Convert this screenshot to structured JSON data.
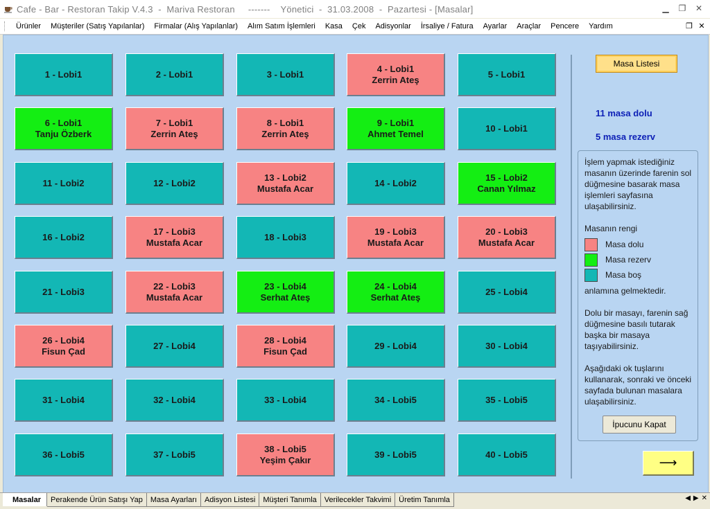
{
  "window": {
    "title": "Cafe - Bar - Restoran Takip V.4.3  -  Mariva Restoran     -------    Yönetici  -  31.03.2008  -  Pazartesi - [Masalar]",
    "icons": {
      "app": "coffee-cup-icon",
      "minimize": "minimize-icon",
      "restore": "restore-icon",
      "close": "close-icon"
    }
  },
  "menu": {
    "items": [
      "Ürünler",
      "Müşteriler (Satış Yapılanlar)",
      "Firmalar (Alış Yapılanlar)",
      "Alım Satım İşlemleri",
      "Kasa",
      "Çek",
      "Adisyonlar",
      "İrsaliye / Fatura",
      "Ayarlar",
      "Araçlar",
      "Pencere",
      "Yardım"
    ]
  },
  "colors": {
    "free": "#13b7b5",
    "full": "#f78383",
    "reserved": "#14ee13",
    "panel": "#b9d5f2",
    "stat_text": "#0c1fb6"
  },
  "tables": [
    {
      "line1": "1 - Lobi1",
      "line2": "",
      "status": "free"
    },
    {
      "line1": "2 - Lobi1",
      "line2": "",
      "status": "free"
    },
    {
      "line1": "3 - Lobi1",
      "line2": "",
      "status": "free"
    },
    {
      "line1": "4 - Lobi1",
      "line2": "Zerrin Ateş",
      "status": "full"
    },
    {
      "line1": "5 - Lobi1",
      "line2": "",
      "status": "free"
    },
    {
      "line1": "6 - Lobi1",
      "line2": "Tanju Özberk",
      "status": "reserved"
    },
    {
      "line1": "7 - Lobi1",
      "line2": "Zerrin Ateş",
      "status": "full"
    },
    {
      "line1": "8 - Lobi1",
      "line2": "Zerrin Ateş",
      "status": "full"
    },
    {
      "line1": "9 - Lobi1",
      "line2": "Ahmet Temel",
      "status": "reserved"
    },
    {
      "line1": "10 - Lobi1",
      "line2": "",
      "status": "free"
    },
    {
      "line1": "11 - Lobi2",
      "line2": "",
      "status": "free"
    },
    {
      "line1": "12 - Lobi2",
      "line2": "",
      "status": "free"
    },
    {
      "line1": "13 - Lobi2",
      "line2": "Mustafa Acar",
      "status": "full"
    },
    {
      "line1": "14 - Lobi2",
      "line2": "",
      "status": "free"
    },
    {
      "line1": "15 - Lobi2",
      "line2": "Canan Yılmaz",
      "status": "reserved"
    },
    {
      "line1": "16 - Lobi2",
      "line2": "",
      "status": "free"
    },
    {
      "line1": "17 - Lobi3",
      "line2": "Mustafa Acar",
      "status": "full"
    },
    {
      "line1": "18 - Lobi3",
      "line2": "",
      "status": "free"
    },
    {
      "line1": "19 - Lobi3",
      "line2": "Mustafa Acar",
      "status": "full"
    },
    {
      "line1": "20 - Lobi3",
      "line2": "Mustafa Acar",
      "status": "full"
    },
    {
      "line1": "21 - Lobi3",
      "line2": "",
      "status": "free"
    },
    {
      "line1": "22 - Lobi3",
      "line2": "Mustafa Acar",
      "status": "full"
    },
    {
      "line1": "23 - Lobi4",
      "line2": "Serhat Ateş",
      "status": "reserved"
    },
    {
      "line1": "24 - Lobi4",
      "line2": "Serhat Ateş",
      "status": "reserved"
    },
    {
      "line1": "25 - Lobi4",
      "line2": "",
      "status": "free"
    },
    {
      "line1": "26 - Lobi4",
      "line2": "Fisun Çad",
      "status": "full"
    },
    {
      "line1": "27 - Lobi4",
      "line2": "",
      "status": "free"
    },
    {
      "line1": "28 - Lobi4",
      "line2": "Fisun Çad",
      "status": "full"
    },
    {
      "line1": "29 - Lobi4",
      "line2": "",
      "status": "free"
    },
    {
      "line1": "30 - Lobi4",
      "line2": "",
      "status": "free"
    },
    {
      "line1": "31 - Lobi4",
      "line2": "",
      "status": "free"
    },
    {
      "line1": "32 - Lobi4",
      "line2": "",
      "status": "free"
    },
    {
      "line1": "33 - Lobi4",
      "line2": "",
      "status": "free"
    },
    {
      "line1": "34 - Lobi5",
      "line2": "",
      "status": "free"
    },
    {
      "line1": "35 - Lobi5",
      "line2": "",
      "status": "free"
    },
    {
      "line1": "36 - Lobi5",
      "line2": "",
      "status": "free"
    },
    {
      "line1": "37 - Lobi5",
      "line2": "",
      "status": "free"
    },
    {
      "line1": "38 - Lobi5",
      "line2": "Yeşim Çakır",
      "status": "full"
    },
    {
      "line1": "39 - Lobi5",
      "line2": "",
      "status": "free"
    },
    {
      "line1": "40 - Lobi5",
      "line2": "",
      "status": "free"
    }
  ],
  "sidebar": {
    "list_button": "Masa Listesi",
    "full_count": "11 masa dolu",
    "reserved_count": "5 masa rezerv",
    "info": {
      "p1": "İşlem yapmak istediğiniz masanın üzerinde farenin sol düğmesine basarak masa işlemleri sayfasına ulaşabilirsiniz.",
      "legend_title": "Masanın rengi",
      "legend_full": "Masa dolu",
      "legend_reserved": "Masa rezerv",
      "legend_free": "Masa boş",
      "legend_suffix": "anlamına gelmektedir.",
      "p2": "Dolu bir masayı, farenin sağ düğmesine basılı tutarak başka bir masaya taşıyabilirsiniz.",
      "p3": "Aşağıdaki ok tuşlarını kullanarak, sonraki ve önceki sayfada bulunan masalara ulaşabilirsiniz.",
      "close_hint_button": "İpucunu Kapat"
    },
    "next_arrow": "⟶"
  },
  "tabs": [
    "Masalar",
    "Perakende Ürün Satışı Yap",
    "Masa Ayarları",
    "Adisyon Listesi",
    "Müşteri Tanımla",
    "Verilecekler Takvimi",
    "Üretim Tanımla"
  ],
  "active_tab": "Masalar"
}
